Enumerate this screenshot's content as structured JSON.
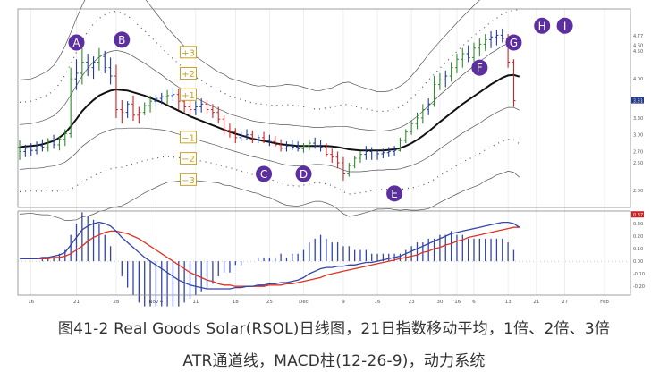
{
  "caption": {
    "line1": "图41-2 Real Goods Solar(RSOL)日线图，21日指数移动平均，1倍、2倍、3倍",
    "line2": "ATR通道线，MACD柱(12-26-9)，动力系统"
  },
  "chart_data": {
    "type": "line",
    "title": "",
    "colors": {
      "price_up": "#2e8b2e",
      "price_down": "#cc2222",
      "price_neutral": "#1f3a9a",
      "ema": "#111111",
      "band": "#555555",
      "macd": "#3344aa",
      "signal": "#dd3322",
      "histogram": "#3344aa",
      "marker": "#5b2fa0",
      "atr_label": "#c9a227"
    },
    "price_panel": {
      "y_axis_labels": [
        "4.77",
        "4.60",
        "4.50",
        "4.00",
        "3.61",
        "3.61",
        "3.60",
        "3.30",
        "3.00",
        "2.70",
        "2.50",
        "2.00"
      ],
      "bars": [
        {
          "o": 2.78,
          "h": 2.9,
          "l": 2.55,
          "c": 2.7,
          "d": "u"
        },
        {
          "o": 2.7,
          "h": 2.82,
          "l": 2.6,
          "c": 2.76,
          "d": "n"
        },
        {
          "o": 2.76,
          "h": 2.85,
          "l": 2.62,
          "c": 2.72,
          "d": "n"
        },
        {
          "o": 2.72,
          "h": 2.88,
          "l": 2.65,
          "c": 2.8,
          "d": "n"
        },
        {
          "o": 2.8,
          "h": 2.92,
          "l": 2.7,
          "c": 2.78,
          "d": "n"
        },
        {
          "o": 2.78,
          "h": 2.94,
          "l": 2.7,
          "c": 2.88,
          "d": "u"
        },
        {
          "o": 2.88,
          "h": 3.0,
          "l": 2.75,
          "c": 2.82,
          "d": "n"
        },
        {
          "o": 2.82,
          "h": 2.98,
          "l": 2.72,
          "c": 2.92,
          "d": "u"
        },
        {
          "o": 2.92,
          "h": 3.1,
          "l": 2.8,
          "c": 3.02,
          "d": "u"
        },
        {
          "o": 3.02,
          "h": 4.2,
          "l": 2.95,
          "c": 4.0,
          "d": "u"
        },
        {
          "o": 4.0,
          "h": 4.35,
          "l": 3.8,
          "c": 4.1,
          "d": "n"
        },
        {
          "o": 4.1,
          "h": 4.72,
          "l": 3.9,
          "c": 4.3,
          "d": "u"
        },
        {
          "o": 4.3,
          "h": 4.45,
          "l": 4.05,
          "c": 4.2,
          "d": "n"
        },
        {
          "o": 4.2,
          "h": 4.4,
          "l": 4.0,
          "c": 4.3,
          "d": "n"
        },
        {
          "o": 4.3,
          "h": 4.55,
          "l": 4.15,
          "c": 4.4,
          "d": "u"
        },
        {
          "o": 4.4,
          "h": 4.5,
          "l": 4.1,
          "c": 4.2,
          "d": "n"
        },
        {
          "o": 4.2,
          "h": 4.38,
          "l": 3.9,
          "c": 4.05,
          "d": "n"
        },
        {
          "o": 4.05,
          "h": 4.25,
          "l": 3.3,
          "c": 3.45,
          "d": "d"
        },
        {
          "o": 3.45,
          "h": 3.62,
          "l": 3.2,
          "c": 3.4,
          "d": "d"
        },
        {
          "o": 3.4,
          "h": 3.6,
          "l": 3.3,
          "c": 3.55,
          "d": "n"
        },
        {
          "o": 3.55,
          "h": 3.7,
          "l": 3.25,
          "c": 3.35,
          "d": "d"
        },
        {
          "o": 3.35,
          "h": 3.5,
          "l": 3.2,
          "c": 3.4,
          "d": "d"
        },
        {
          "o": 3.4,
          "h": 3.58,
          "l": 3.35,
          "c": 3.52,
          "d": "u"
        },
        {
          "o": 3.52,
          "h": 3.7,
          "l": 3.4,
          "c": 3.6,
          "d": "u"
        },
        {
          "o": 3.6,
          "h": 3.72,
          "l": 3.5,
          "c": 3.65,
          "d": "n"
        },
        {
          "o": 3.65,
          "h": 3.75,
          "l": 3.55,
          "c": 3.68,
          "d": "n"
        },
        {
          "o": 3.68,
          "h": 3.8,
          "l": 3.55,
          "c": 3.7,
          "d": "u"
        },
        {
          "o": 3.7,
          "h": 3.85,
          "l": 3.6,
          "c": 3.72,
          "d": "n"
        },
        {
          "o": 3.72,
          "h": 3.82,
          "l": 3.45,
          "c": 3.6,
          "d": "d"
        },
        {
          "o": 3.6,
          "h": 3.7,
          "l": 3.4,
          "c": 3.5,
          "d": "d"
        },
        {
          "o": 3.5,
          "h": 3.62,
          "l": 3.35,
          "c": 3.45,
          "d": "d"
        },
        {
          "o": 3.45,
          "h": 3.6,
          "l": 3.35,
          "c": 3.5,
          "d": "n"
        },
        {
          "o": 3.5,
          "h": 3.65,
          "l": 3.4,
          "c": 3.55,
          "d": "n"
        },
        {
          "o": 3.55,
          "h": 3.62,
          "l": 3.38,
          "c": 3.45,
          "d": "d"
        },
        {
          "o": 3.45,
          "h": 3.55,
          "l": 3.3,
          "c": 3.4,
          "d": "d"
        },
        {
          "o": 3.4,
          "h": 3.5,
          "l": 3.2,
          "c": 3.28,
          "d": "d"
        },
        {
          "o": 3.28,
          "h": 3.35,
          "l": 3.0,
          "c": 3.08,
          "d": "d"
        },
        {
          "o": 3.08,
          "h": 3.2,
          "l": 2.95,
          "c": 3.05,
          "d": "d"
        },
        {
          "o": 3.05,
          "h": 3.12,
          "l": 2.85,
          "c": 2.95,
          "d": "d"
        },
        {
          "o": 2.95,
          "h": 3.05,
          "l": 2.88,
          "c": 2.98,
          "d": "n"
        },
        {
          "o": 2.98,
          "h": 3.1,
          "l": 2.9,
          "c": 3.0,
          "d": "n"
        },
        {
          "o": 3.0,
          "h": 3.08,
          "l": 2.85,
          "c": 2.92,
          "d": "d"
        },
        {
          "o": 2.92,
          "h": 3.0,
          "l": 2.85,
          "c": 2.95,
          "d": "n"
        },
        {
          "o": 2.95,
          "h": 3.05,
          "l": 2.85,
          "c": 2.9,
          "d": "d"
        },
        {
          "o": 2.9,
          "h": 3.0,
          "l": 2.8,
          "c": 2.88,
          "d": "n"
        },
        {
          "o": 2.88,
          "h": 2.98,
          "l": 2.78,
          "c": 2.82,
          "d": "d"
        },
        {
          "o": 2.82,
          "h": 2.92,
          "l": 2.7,
          "c": 2.76,
          "d": "d"
        },
        {
          "o": 2.76,
          "h": 2.88,
          "l": 2.7,
          "c": 2.8,
          "d": "n"
        },
        {
          "o": 2.8,
          "h": 2.9,
          "l": 2.72,
          "c": 2.78,
          "d": "n"
        },
        {
          "o": 2.78,
          "h": 2.88,
          "l": 2.7,
          "c": 2.75,
          "d": "n"
        },
        {
          "o": 2.75,
          "h": 2.85,
          "l": 2.68,
          "c": 2.8,
          "d": "u"
        },
        {
          "o": 2.8,
          "h": 2.92,
          "l": 2.72,
          "c": 2.85,
          "d": "u"
        },
        {
          "o": 2.85,
          "h": 2.95,
          "l": 2.75,
          "c": 2.8,
          "d": "n"
        },
        {
          "o": 2.8,
          "h": 2.9,
          "l": 2.7,
          "c": 2.78,
          "d": "n"
        },
        {
          "o": 2.78,
          "h": 2.85,
          "l": 2.6,
          "c": 2.65,
          "d": "d"
        },
        {
          "o": 2.65,
          "h": 2.75,
          "l": 2.5,
          "c": 2.6,
          "d": "d"
        },
        {
          "o": 2.6,
          "h": 2.7,
          "l": 2.4,
          "c": 2.5,
          "d": "d"
        },
        {
          "o": 2.5,
          "h": 2.6,
          "l": 2.18,
          "c": 2.3,
          "d": "d"
        },
        {
          "o": 2.3,
          "h": 2.5,
          "l": 2.25,
          "c": 2.45,
          "d": "u"
        },
        {
          "o": 2.45,
          "h": 2.62,
          "l": 2.4,
          "c": 2.58,
          "d": "u"
        },
        {
          "o": 2.58,
          "h": 2.7,
          "l": 2.5,
          "c": 2.65,
          "d": "u"
        },
        {
          "o": 2.65,
          "h": 2.8,
          "l": 2.55,
          "c": 2.7,
          "d": "n"
        },
        {
          "o": 2.7,
          "h": 2.78,
          "l": 2.55,
          "c": 2.62,
          "d": "n"
        },
        {
          "o": 2.62,
          "h": 2.72,
          "l": 2.55,
          "c": 2.66,
          "d": "n"
        },
        {
          "o": 2.66,
          "h": 2.75,
          "l": 2.58,
          "c": 2.68,
          "d": "n"
        },
        {
          "o": 2.68,
          "h": 2.78,
          "l": 2.6,
          "c": 2.7,
          "d": "n"
        },
        {
          "o": 2.7,
          "h": 2.8,
          "l": 2.62,
          "c": 2.72,
          "d": "n"
        },
        {
          "o": 2.72,
          "h": 2.95,
          "l": 2.7,
          "c": 2.9,
          "d": "u"
        },
        {
          "o": 2.9,
          "h": 3.1,
          "l": 2.85,
          "c": 3.05,
          "d": "u"
        },
        {
          "o": 3.05,
          "h": 3.25,
          "l": 3.0,
          "c": 3.2,
          "d": "u"
        },
        {
          "o": 3.2,
          "h": 3.4,
          "l": 3.1,
          "c": 3.3,
          "d": "u"
        },
        {
          "o": 3.3,
          "h": 3.55,
          "l": 3.2,
          "c": 3.45,
          "d": "u"
        },
        {
          "o": 3.45,
          "h": 3.65,
          "l": 3.35,
          "c": 3.55,
          "d": "n"
        },
        {
          "o": 3.55,
          "h": 4.05,
          "l": 3.5,
          "c": 3.9,
          "d": "u"
        },
        {
          "o": 3.9,
          "h": 4.1,
          "l": 3.8,
          "c": 3.98,
          "d": "u"
        },
        {
          "o": 3.98,
          "h": 4.15,
          "l": 3.85,
          "c": 4.05,
          "d": "n"
        },
        {
          "o": 4.05,
          "h": 4.3,
          "l": 3.95,
          "c": 4.2,
          "d": "u"
        },
        {
          "o": 4.2,
          "h": 4.45,
          "l": 4.1,
          "c": 4.35,
          "d": "u"
        },
        {
          "o": 4.35,
          "h": 4.55,
          "l": 4.2,
          "c": 4.45,
          "d": "u"
        },
        {
          "o": 4.45,
          "h": 4.6,
          "l": 4.3,
          "c": 4.38,
          "d": "n"
        },
        {
          "o": 4.38,
          "h": 4.65,
          "l": 4.3,
          "c": 4.55,
          "d": "u"
        },
        {
          "o": 4.55,
          "h": 4.72,
          "l": 4.4,
          "c": 4.62,
          "d": "u"
        },
        {
          "o": 4.62,
          "h": 4.8,
          "l": 4.5,
          "c": 4.7,
          "d": "u"
        },
        {
          "o": 4.7,
          "h": 4.85,
          "l": 4.55,
          "c": 4.75,
          "d": "n"
        },
        {
          "o": 4.75,
          "h": 4.88,
          "l": 4.6,
          "c": 4.78,
          "d": "n"
        },
        {
          "o": 4.78,
          "h": 4.9,
          "l": 4.65,
          "c": 4.72,
          "d": "n"
        },
        {
          "o": 4.72,
          "h": 4.8,
          "l": 4.2,
          "c": 4.3,
          "d": "d"
        },
        {
          "o": 4.3,
          "h": 4.35,
          "l": 3.5,
          "c": 3.61,
          "d": "d"
        }
      ],
      "ema21": [
        2.78,
        2.79,
        2.8,
        2.81,
        2.83,
        2.86,
        2.89,
        2.95,
        3.03,
        3.15,
        3.28,
        3.42,
        3.53,
        3.62,
        3.7,
        3.75,
        3.79,
        3.81,
        3.8,
        3.79,
        3.76,
        3.73,
        3.7,
        3.66,
        3.62,
        3.58,
        3.53,
        3.48,
        3.43,
        3.38,
        3.33,
        3.29,
        3.25,
        3.21,
        3.17,
        3.13,
        3.09,
        3.05,
        3.02,
        2.99,
        2.96,
        2.93,
        2.91,
        2.89,
        2.87,
        2.85,
        2.83,
        2.82,
        2.81,
        2.8,
        2.8,
        2.8,
        2.8,
        2.8,
        2.8,
        2.79,
        2.78,
        2.76,
        2.74,
        2.73,
        2.72,
        2.72,
        2.72,
        2.72,
        2.72,
        2.73,
        2.74,
        2.76,
        2.8,
        2.85,
        2.91,
        2.98,
        3.06,
        3.14,
        3.23,
        3.31,
        3.39,
        3.47,
        3.55,
        3.62,
        3.69,
        3.76,
        3.83,
        3.9,
        3.96,
        4.02,
        4.06,
        4.07,
        4.04
      ],
      "atr": [
        0.4,
        0.4,
        0.4,
        0.41,
        0.42,
        0.43,
        0.45,
        0.48,
        0.52,
        0.56,
        0.6,
        0.63,
        0.66,
        0.68,
        0.69,
        0.7,
        0.7,
        0.7,
        0.69,
        0.67,
        0.64,
        0.61,
        0.58,
        0.55,
        0.52,
        0.49,
        0.46,
        0.44,
        0.42,
        0.4,
        0.38,
        0.37,
        0.36,
        0.35,
        0.34,
        0.33,
        0.33,
        0.32,
        0.32,
        0.32,
        0.32,
        0.32,
        0.32,
        0.33,
        0.33,
        0.34,
        0.35,
        0.36,
        0.36,
        0.36,
        0.35,
        0.34,
        0.33,
        0.33,
        0.34,
        0.35,
        0.37,
        0.39,
        0.4,
        0.39,
        0.38,
        0.37,
        0.36,
        0.35,
        0.35,
        0.35,
        0.36,
        0.37,
        0.38,
        0.4,
        0.42,
        0.44,
        0.46,
        0.47,
        0.48,
        0.49,
        0.5,
        0.51,
        0.52,
        0.53,
        0.54,
        0.55,
        0.55,
        0.56,
        0.56,
        0.57,
        0.57,
        0.58,
        0.6
      ],
      "atr_labels": [
        "+3",
        "+2",
        "+1",
        "−1",
        "−2",
        "−3"
      ],
      "markers": [
        {
          "label": "A",
          "bar": 10,
          "price": 4.65
        },
        {
          "label": "B",
          "bar": 18,
          "price": 4.7
        },
        {
          "label": "C",
          "bar": 43,
          "price": 2.3
        },
        {
          "label": "D",
          "bar": 50,
          "price": 2.3
        },
        {
          "label": "E",
          "bar": 66,
          "price": 1.95
        },
        {
          "label": "F",
          "bar": 81,
          "price": 4.2
        },
        {
          "label": "G",
          "bar": 87,
          "price": 4.65
        },
        {
          "label": "H",
          "bar": 92,
          "price": 4.95
        },
        {
          "label": "I",
          "bar": 96,
          "price": 4.95
        }
      ],
      "ylim": [
        1.7,
        5.25
      ]
    },
    "macd_panel": {
      "y_axis_labels": [
        "0.37",
        "0.30",
        "0.20",
        "0.10",
        "0.00",
        "-0.10",
        "-0.20"
      ],
      "macd": [
        0.02,
        0.02,
        0.02,
        0.02,
        0.03,
        0.03,
        0.04,
        0.05,
        0.07,
        0.13,
        0.19,
        0.25,
        0.28,
        0.3,
        0.31,
        0.3,
        0.28,
        0.24,
        0.19,
        0.15,
        0.11,
        0.07,
        0.03,
        0.0,
        -0.03,
        -0.06,
        -0.09,
        -0.12,
        -0.15,
        -0.17,
        -0.19,
        -0.2,
        -0.21,
        -0.22,
        -0.22,
        -0.22,
        -0.22,
        -0.22,
        -0.21,
        -0.21,
        -0.2,
        -0.2,
        -0.19,
        -0.19,
        -0.18,
        -0.18,
        -0.17,
        -0.17,
        -0.16,
        -0.15,
        -0.13,
        -0.1,
        -0.08,
        -0.06,
        -0.05,
        -0.05,
        -0.04,
        -0.04,
        -0.03,
        -0.03,
        -0.02,
        -0.01,
        -0.01,
        0.0,
        0.01,
        0.02,
        0.03,
        0.04,
        0.06,
        0.08,
        0.1,
        0.12,
        0.14,
        0.16,
        0.18,
        0.2,
        0.22,
        0.23,
        0.24,
        0.25,
        0.26,
        0.27,
        0.28,
        0.29,
        0.3,
        0.31,
        0.31,
        0.3,
        0.27
      ],
      "signal": [
        0.02,
        0.02,
        0.02,
        0.02,
        0.02,
        0.02,
        0.03,
        0.03,
        0.04,
        0.06,
        0.09,
        0.12,
        0.16,
        0.19,
        0.21,
        0.23,
        0.24,
        0.24,
        0.23,
        0.22,
        0.2,
        0.18,
        0.15,
        0.12,
        0.09,
        0.06,
        0.03,
        0.0,
        -0.03,
        -0.06,
        -0.09,
        -0.11,
        -0.13,
        -0.15,
        -0.16,
        -0.18,
        -0.19,
        -0.19,
        -0.2,
        -0.2,
        -0.2,
        -0.2,
        -0.2,
        -0.2,
        -0.19,
        -0.19,
        -0.19,
        -0.18,
        -0.18,
        -0.17,
        -0.16,
        -0.15,
        -0.14,
        -0.13,
        -0.11,
        -0.1,
        -0.09,
        -0.08,
        -0.07,
        -0.06,
        -0.05,
        -0.04,
        -0.03,
        -0.02,
        -0.01,
        0.0,
        0.01,
        0.02,
        0.03,
        0.04,
        0.05,
        0.07,
        0.08,
        0.1,
        0.11,
        0.13,
        0.14,
        0.16,
        0.17,
        0.19,
        0.2,
        0.21,
        0.22,
        0.23,
        0.24,
        0.25,
        0.26,
        0.27,
        0.27
      ],
      "ylim": [
        -0.27,
        0.4
      ]
    },
    "x_axis_labels": [
      {
        "text": "16",
        "bar": 2
      },
      {
        "text": "21",
        "bar": 10
      },
      {
        "text": "28",
        "bar": 17
      },
      {
        "text": "Nov 4",
        "bar": 24
      },
      {
        "text": "11",
        "bar": 31
      },
      {
        "text": "18",
        "bar": 38
      },
      {
        "text": "25",
        "bar": 44
      },
      {
        "text": "Dec",
        "bar": 50
      },
      {
        "text": "9",
        "bar": 57
      },
      {
        "text": "16",
        "bar": 63
      },
      {
        "text": "23",
        "bar": 69
      },
      {
        "text": "30",
        "bar": 74
      },
      {
        "text": "'16",
        "bar": 77
      },
      {
        "text": "6",
        "bar": 80
      },
      {
        "text": "13",
        "bar": 86
      },
      {
        "text": "21",
        "bar": 91
      },
      {
        "text": "27",
        "bar": 96
      },
      {
        "text": "Feb",
        "bar": 103
      }
    ]
  }
}
